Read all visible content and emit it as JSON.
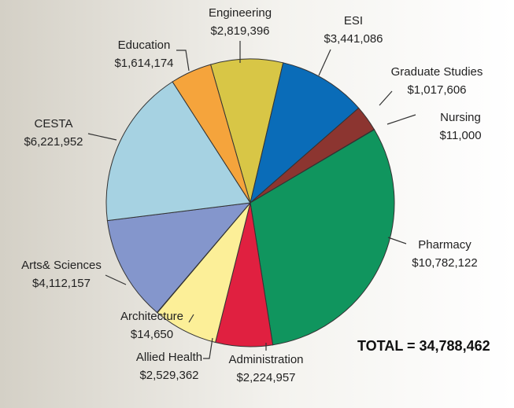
{
  "chart_data": {
    "type": "pie",
    "categories": [
      "Engineering",
      "ESI",
      "Graduate Studies",
      "Nursing",
      "Pharmacy",
      "Administration",
      "Allied Health",
      "Architecture",
      "Arts& Sciences",
      "CESTA",
      "Education"
    ],
    "values": [
      2819396,
      3441086,
      1017606,
      11000,
      10782122,
      2224957,
      2529362,
      14650,
      4112157,
      6221952,
      1614174
    ],
    "value_labels": [
      "$2,819,396",
      "$3,441,086",
      "$1,017,606",
      "$11,000",
      "$10,782,122",
      "$2,224,957",
      "$2,529,362",
      "$14,650",
      "$4,112,157",
      "$6,221,952",
      "$1,614,174"
    ],
    "colors": [
      "#d8c646",
      "#0a6cb8",
      "#8c3530",
      "#a050a0",
      "#10955e",
      "#e02040",
      "#fcef98",
      "#5c6a38",
      "#8496cc",
      "#a6d2e2",
      "#f5a43c"
    ],
    "annotation": "TOTAL = 34,788,462"
  }
}
